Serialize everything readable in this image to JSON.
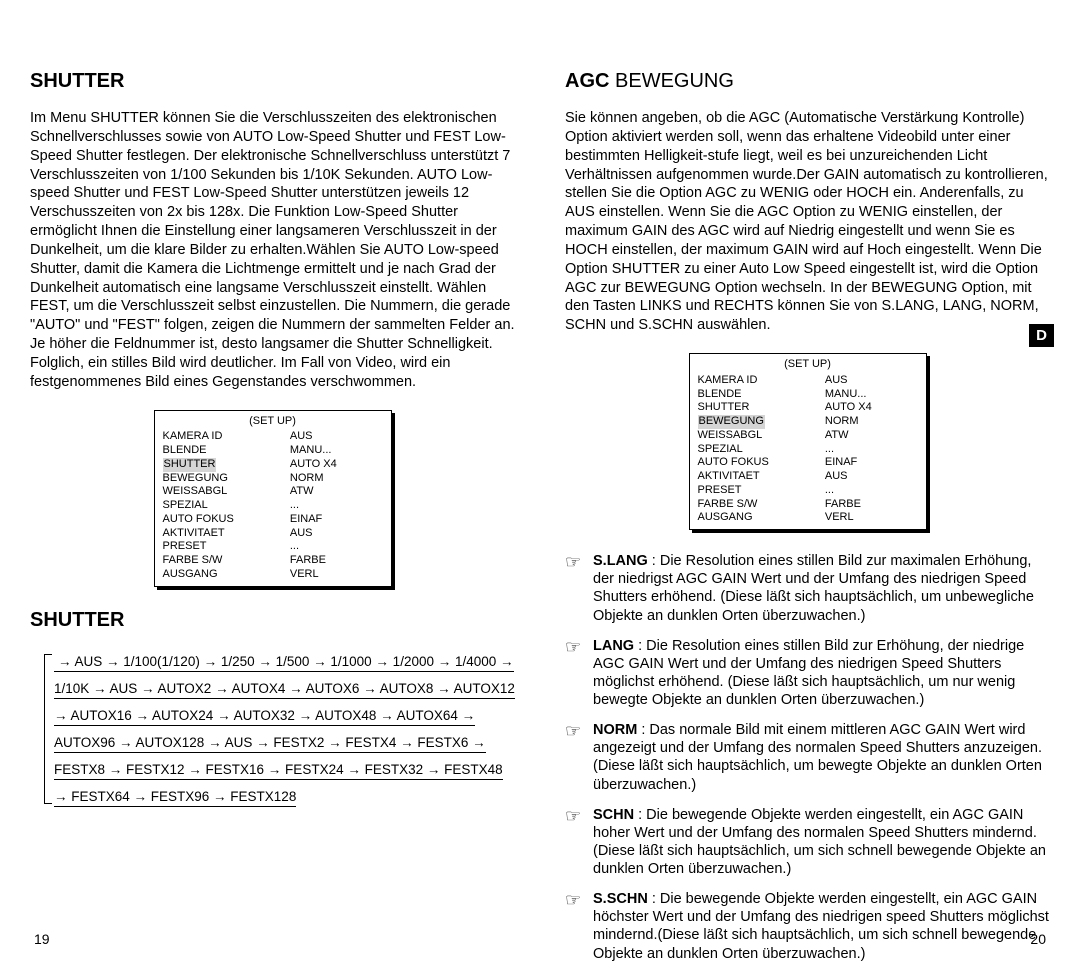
{
  "left": {
    "heading1": "SHUTTER",
    "paragraph1": "Im Menu SHUTTER können Sie die Verschlusszeiten des elektronischen Schnellverschlusses sowie von AUTO Low-Speed Shutter und FEST Low-Speed Shutter festlegen.\nDer elektronische Schnellverschluss unterstützt 7 Verschlusszeiten von 1/100 Sekunden bis 1/10K Sekunden. AUTO Low-speed Shutter und FEST Low-Speed Shutter unterstützen jeweils 12 Verschusszeiten von 2x bis 128x. Die Funktion Low-Speed Shutter ermöglicht Ihnen die Einstellung einer langsameren Verschlusszeit in der Dunkelheit, um die klare Bilder zu erhalten.Wählen Sie AUTO Low-speed Shutter, damit die Kamera die Lichtmenge ermittelt und je  nach Grad der Dunkelheit automatisch eine langsame Verschlusszeit einstellt. Wählen FEST, um die Verschlusszeit selbst einzustellen. Die Nummern, die gerade \"AUTO\" und \"FEST\" folgen, zeigen die Nummern der sammelten Felder an. Je höher die Feldnummer ist, desto langsamer die Shutter Schnelligkeit. Folglich, ein stilles Bild wird deutlicher. Im Fall von Video, wird ein festgenommenes Bild eines Gegenstandes verschwommen.",
    "setup": {
      "title": "(SET UP)",
      "highlightRow": 2,
      "rows": [
        [
          "KAMERA ID",
          "AUS"
        ],
        [
          "BLENDE",
          "MANU..."
        ],
        [
          "SHUTTER",
          "AUTO X4"
        ],
        [
          "BEWEGUNG",
          "NORM"
        ],
        [
          "WEISSABGL",
          "ATW"
        ],
        [
          "SPEZIAL",
          "..."
        ],
        [
          "AUTO FOKUS",
          "EINAF"
        ],
        [
          "AKTIVITAET",
          "AUS"
        ],
        [
          "PRESET",
          "..."
        ],
        [
          "FARBE S/W",
          "FARBE"
        ],
        [
          "AUSGANG",
          "VERL"
        ]
      ]
    },
    "heading2": "SHUTTER",
    "flow": "→ AUS → 1/100(1/120) → 1/250 → 1/500 → 1/1000 → 1/2000 → 1/4000 → 1/10K → AUS → AUTOX2 → AUTOX4 → AUTOX6 → AUTOX8 → AUTOX12 → AUTOX16 → AUTOX24 → AUTOX32 → AUTOX48 → AUTOX64 → AUTOX96 → AUTOX128 → AUS → FESTX2 → FESTX4 → FESTX6 → FESTX8 → FESTX12 → FESTX16 →  FESTX24 → FESTX32 → FESTX48 → FESTX64 → FESTX96 → FESTX128",
    "pagenum": "19"
  },
  "right": {
    "heading_bold": "AGC",
    "heading_light": " BEWEGUNG",
    "paragraph": "Sie können angeben, ob die AGC (Automatische Verstärkung Kontrolle) Option aktiviert werden soll, wenn das erhaltene Videobild unter einer bestimmten Helligkeit-stufe liegt, weil es bei unzureichenden Licht Verhältnissen aufgenommen wurde.Der GAIN automatisch zu kontrollieren, stellen Sie die Option AGC zu WENIG oder HOCH ein. Anderenfalls, zu AUS einstellen. Wenn Sie die AGC Option zu WENIG einstellen, der maximum GAIN des AGC wird auf Niedrig eingestellt und wenn Sie es HOCH einstellen, der maximum GAIN wird auf Hoch eingestellt. Wenn Die Option SHUTTER zu einer Auto Low Speed eingestellt ist, wird die Option AGC zur BEWEGUNG Option wechseln. In der BEWEGUNG Option, mit den Tasten LINKS und RECHTS können Sie von S.LANG, LANG, NORM, SCHN und S.SCHN auswählen.",
    "tab": "D",
    "setup": {
      "title": "(SET UP)",
      "highlightRow": 3,
      "rows": [
        [
          "KAMERA ID",
          "AUS"
        ],
        [
          "BLENDE",
          "MANU..."
        ],
        [
          "SHUTTER",
          "AUTO X4"
        ],
        [
          "BEWEGUNG",
          "NORM"
        ],
        [
          "WEISSABGL",
          "ATW"
        ],
        [
          "SPEZIAL",
          "..."
        ],
        [
          "AUTO FOKUS",
          "EINAF"
        ],
        [
          "AKTIVITAET",
          "AUS"
        ],
        [
          "PRESET",
          "..."
        ],
        [
          "FARBE S/W",
          "FARBE"
        ],
        [
          "AUSGANG",
          "VERL"
        ]
      ]
    },
    "notes": [
      {
        "term": "S.LANG",
        "text": " : Die Resolution eines  stillen Bild zur  maximalen Erhöhung, der  niedrigst AGC GAIN Wert und der Umfang des niedrigen Speed Shutters erhöhend. (Diese läßt sich hauptsächlich, um unbewegliche Objekte an dunklen Orten überzuwachen.)"
      },
      {
        "term": "LANG",
        "text": " : Die Resolution  eines stillen Bild zur  Erhöhung, der niedrige AGC GAIN Wert und der Umfang des niedrigen Speed Shutters möglichst erhöhend.\n(Diese läßt sich hauptsächlich, um nur wenig bewegte Objekte an dunklen Orten überzuwachen.)"
      },
      {
        "term": "NORM",
        "text": " : Das normale Bild mit  einem mittleren AGC GAIN Wert wird angezeigt und der Umfang des normalen Speed Shutters anzuzeigen. (Diese läßt sich hauptsächlich, um bewegte Objekte an dunklen Orten überzuwachen.)"
      },
      {
        "term": "SCHN",
        "text": " : Die bewegende Objekte werden eingestellt, ein AGC GAIN hoher Wert und der Umfang des normalen Speed Shutters mindernd. (Diese läßt sich hauptsächlich, um sich schnell bewegende Objekte an dunklen Orten überzuwachen.)"
      },
      {
        "term": "S.SCHN",
        "text": " : Die bewegende Objekte werden eingestellt, ein AGC GAIN höchster Wert und der Umfang des niedrigen speed Shutters möglichst mindernd.(Diese läßt sich hauptsächlich, um sich schnell bewegende Objekte an dunklen Orten überzuwachen.)"
      }
    ],
    "pagenum": "20"
  }
}
